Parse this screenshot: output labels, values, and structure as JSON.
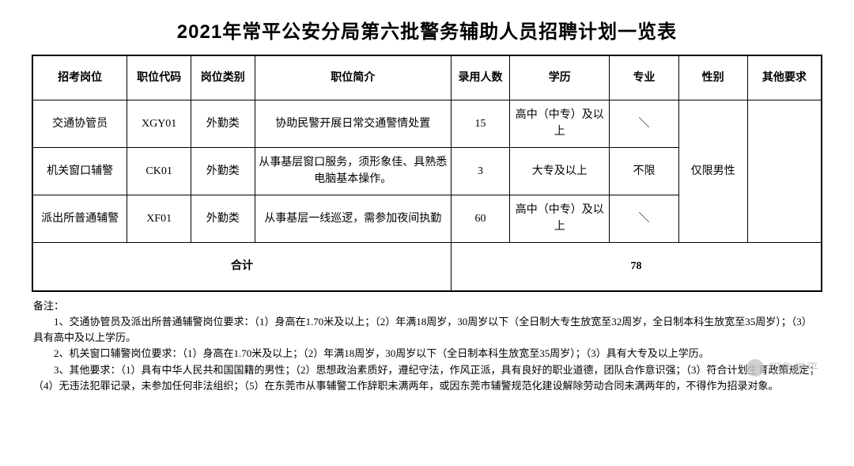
{
  "title": "2021年常平公安分局第六批警务辅助人员招聘计划一览表",
  "columns": {
    "position": "招考岗位",
    "code": "职位代码",
    "category": "岗位类别",
    "description": "职位简介",
    "hirecount": "录用人数",
    "education": "学历",
    "major": "专业",
    "gender": "性别",
    "other": "其他要求"
  },
  "rows": [
    {
      "position": "交通协管员",
      "code": "XGY01",
      "category": "外勤类",
      "description": "协助民警开展日常交通警情处置",
      "hirecount": "15",
      "education": "高中（中专）及以上",
      "major": "＼"
    },
    {
      "position": "机关窗口辅警",
      "code": "CK01",
      "category": "外勤类",
      "description": "从事基层窗口服务，须形象佳、具熟悉电脑基本操作。",
      "hirecount": "3",
      "education": "大专及以上",
      "major": "不限"
    },
    {
      "position": "派出所普通辅警",
      "code": "XF01",
      "category": "外勤类",
      "description": "从事基层一线巡逻，需参加夜间执勤",
      "hirecount": "60",
      "education": "高中（中专）及以上",
      "major": "＼"
    }
  ],
  "gender_merged": "仅限男性",
  "other_merged": "",
  "subtotal_label": "合计",
  "subtotal_value": "78",
  "notes_label": "备注：",
  "notes_body": "　　1、交通协管员及派出所普通辅警岗位要求：（1）身高在1.70米及以上；（2）年满18周岁，30周岁以下（全日制大专生放宽至32周岁，全日制本科生放宽至35周岁）；（3）具有高中及以上学历。\n　　2、机关窗口辅警岗位要求：（1）身高在1.70米及以上；（2）年满18周岁，30周岁以下（全日制本科生放宽至35周岁）；（3）具有大专及以上学历。\n　　3、其他要求：（1）具有中华人民共和国国籍的男性；（2）思想政治素质好，遵纪守法，作风正派，具有良好的职业道德，团队合作意识强；（3）符合计划生育政策规定；（4）无违法犯罪记录，未参加任何非法组织；（5）在东莞市从事辅警工作辞职未满两年，或因东莞市辅警规范化建设解除劳动合同未满两年的，不得作为招录对象。",
  "watermark": "印象常平"
}
